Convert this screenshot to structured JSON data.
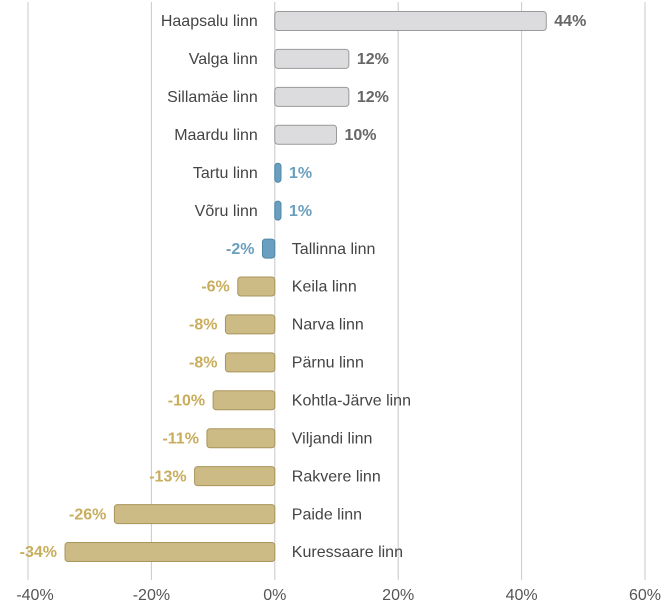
{
  "chart_data": {
    "type": "bar",
    "orientation": "horizontal",
    "categories": [
      "Haapsalu linn",
      "Valga linn",
      "Sillamäe linn",
      "Maardu linn",
      "Tartu linn",
      "Võru linn",
      "Tallinna linn",
      "Keila linn",
      "Narva linn",
      "Pärnu linn",
      "Kohtla-Järve linn",
      "Viljandi linn",
      "Rakvere linn",
      "Paide linn",
      "Kuressaare linn"
    ],
    "values": [
      44,
      12,
      12,
      10,
      1,
      1,
      -2,
      -6,
      -8,
      -8,
      -10,
      -11,
      -13,
      -26,
      -34
    ],
    "value_labels": [
      "44%",
      "12%",
      "12%",
      "10%",
      "1%",
      "1%",
      "-2%",
      "-6%",
      "-8%",
      "-8%",
      "-10%",
      "-11%",
      "-13%",
      "-26%",
      "-34%"
    ],
    "colors": [
      "#dcdcde",
      "#dcdcde",
      "#dcdcde",
      "#dcdcde",
      "#6a9fbf",
      "#6a9fbf",
      "#6a9fbf",
      "#cdbb85",
      "#cdbb85",
      "#cdbb85",
      "#cdbb85",
      "#cdbb85",
      "#cdbb85",
      "#cdbb85",
      "#cdbb85"
    ],
    "label_colors": [
      "#666666",
      "#666666",
      "#666666",
      "#666666",
      "#6a9fbf",
      "#6a9fbf",
      "#6a9fbf",
      "#c8ad5c",
      "#c8ad5c",
      "#c8ad5c",
      "#c8ad5c",
      "#c8ad5c",
      "#c8ad5c",
      "#c8ad5c",
      "#c8ad5c"
    ],
    "xlim": [
      -40,
      60
    ],
    "xticks": [
      {
        "value": -40,
        "label": "-40%"
      },
      {
        "value": -20,
        "label": "-20%"
      },
      {
        "value": 0,
        "label": "0%"
      },
      {
        "value": 20,
        "label": "20%"
      },
      {
        "value": 40,
        "label": "40%"
      },
      {
        "value": 60,
        "label": "60%"
      }
    ],
    "grid": true
  }
}
